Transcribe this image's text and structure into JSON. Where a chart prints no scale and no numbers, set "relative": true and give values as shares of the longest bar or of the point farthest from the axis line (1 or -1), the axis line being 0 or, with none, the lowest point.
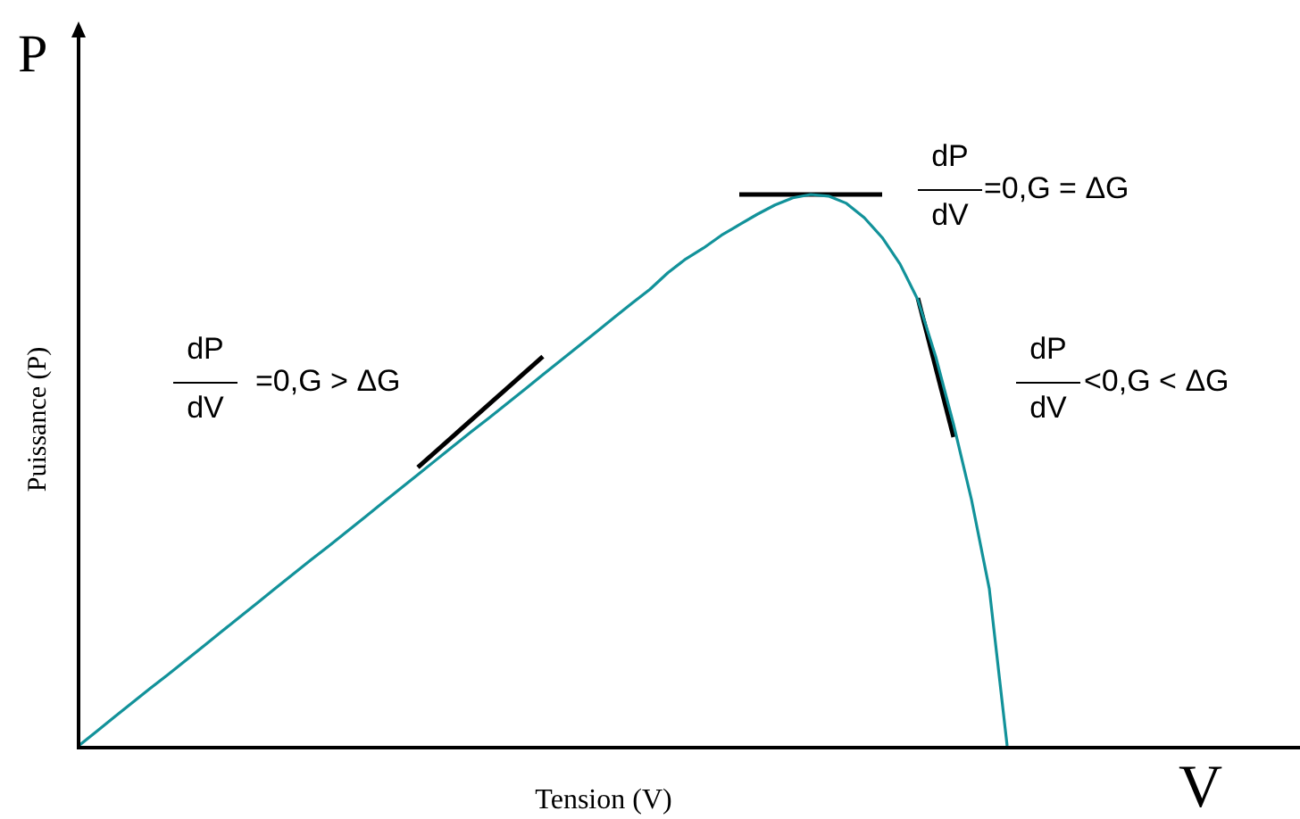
{
  "chart_data": {
    "type": "line",
    "relative": true,
    "xlabel": "Tension (V)",
    "ylabel": "Puissance (P)",
    "marker": "none",
    "categories": [
      null,
      null,
      null,
      null,
      null,
      null,
      null,
      null,
      null,
      null,
      null,
      null,
      null,
      null,
      null,
      null,
      null,
      null,
      null,
      null,
      null,
      null,
      null,
      null,
      null,
      null,
      null,
      null,
      null,
      null,
      null,
      null,
      null,
      null,
      null,
      null,
      null,
      null,
      null,
      null,
      null,
      null,
      null,
      null,
      null,
      null,
      null,
      null,
      null,
      null,
      null,
      null,
      null,
      null,
      null,
      null,
      null,
      null,
      null,
      null,
      null,
      null,
      null,
      null,
      null,
      null,
      null,
      null,
      null
    ],
    "series": [
      {
        "color": "#12929a",
        "values": [
          0,
          0.026,
          0.052,
          0.078,
          0.104,
          0.129,
          0.155,
          0.181,
          0.207,
          0.233,
          0.259,
          0.285,
          0.311,
          0.337,
          0.362,
          0.388,
          0.414,
          0.44,
          0.466,
          0.492,
          0.518,
          0.544,
          0.57,
          0.595,
          0.621,
          0.647,
          0.673,
          0.699,
          0.725,
          0.751,
          0.777,
          0.803,
          0.828,
          0.858,
          0.883,
          0.903,
          0.926,
          0.945,
          0.964,
          0.981,
          0.994,
          1,
          0.997,
          0.984,
          0.958,
          0.922,
          0.874,
          0.809,
          0.706,
          0.583,
          0.447,
          0.285,
          0,
          null,
          null,
          null,
          null,
          null,
          null,
          null,
          null,
          null,
          null,
          null,
          null,
          null,
          null,
          null,
          null
        ]
      },
      {
        "color": "#000000",
        "values": [
          null,
          null,
          null,
          null,
          null,
          null,
          null,
          null,
          null,
          null,
          null,
          null,
          null,
          null,
          null,
          null,
          null,
          null,
          null,
          0.505,
          null,
          null,
          null,
          null,
          null,
          null,
          0.706,
          null,
          null,
          null,
          null,
          null,
          null,
          null,
          null,
          null,
          null,
          null,
          null,
          null,
          null,
          null,
          null,
          null,
          null,
          null,
          null,
          null,
          null,
          null,
          null,
          null,
          null,
          null,
          null,
          null,
          null,
          null,
          null,
          null,
          null,
          null,
          null,
          null,
          null,
          null,
          null,
          null,
          null
        ]
      },
      {
        "color": "#000000",
        "values": [
          null,
          null,
          null,
          null,
          null,
          null,
          null,
          null,
          null,
          null,
          null,
          null,
          null,
          null,
          null,
          null,
          null,
          null,
          null,
          null,
          null,
          null,
          null,
          null,
          null,
          null,
          null,
          null,
          null,
          null,
          null,
          null,
          null,
          null,
          null,
          null,
          null,
          1,
          null,
          null,
          null,
          null,
          null,
          null,
          null,
          1,
          null,
          null,
          null,
          null,
          null,
          null,
          null,
          null,
          null,
          null,
          null,
          null,
          null,
          null,
          null,
          null,
          null,
          null,
          null,
          null,
          null,
          null,
          null
        ]
      },
      {
        "color": "#000000",
        "values": [
          null,
          null,
          null,
          null,
          null,
          null,
          null,
          null,
          null,
          null,
          null,
          null,
          null,
          null,
          null,
          null,
          null,
          null,
          null,
          null,
          null,
          null,
          null,
          null,
          null,
          null,
          null,
          null,
          null,
          null,
          null,
          null,
          null,
          null,
          null,
          null,
          null,
          null,
          null,
          null,
          null,
          null,
          null,
          null,
          null,
          null,
          null,
          0.812,
          null,
          0.56,
          null,
          null,
          null,
          null,
          null,
          null,
          null,
          null,
          null,
          null,
          null,
          null,
          null,
          null,
          null,
          null,
          null,
          null,
          null
        ]
      }
    ],
    "annotations": [
      "P",
      "V",
      "dP",
      "dV",
      "=0,G > ΔG",
      "dP",
      "dV",
      "=0,G = ΔG",
      "dP",
      "dV",
      "<0,G < ΔG"
    ]
  }
}
